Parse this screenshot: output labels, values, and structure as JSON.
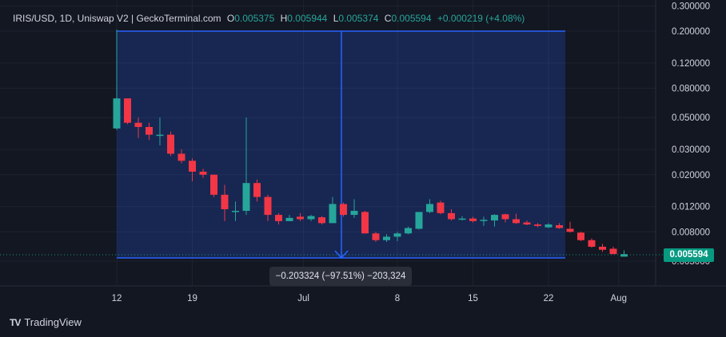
{
  "header": {
    "symbol": "IRIS/USD, 1D, Uniswap V2 | GeckoTerminal.com",
    "o_label": "O",
    "o_value": "0.005375",
    "h_label": "H",
    "h_value": "0.005944",
    "l_label": "L",
    "l_value": "0.005374",
    "c_label": "C",
    "c_value": "0.005594",
    "change": "+0.000219 (+4.08%)"
  },
  "measure": {
    "label": "−0.203324 (−97.51%) −203,324"
  },
  "last_price": "0.005594",
  "brand": {
    "logo": "TV",
    "name": "TradingView"
  },
  "colors": {
    "background": "#131722",
    "up": "#26a69a",
    "down": "#f23645",
    "measure": "#2962ff",
    "last": "#089981"
  },
  "chart_data": {
    "type": "candlestick",
    "scale": "log",
    "y_ticks": [
      "0.300000",
      "0.200000",
      "0.120000",
      "0.080000",
      "0.050000",
      "0.030000",
      "0.020000",
      "0.012000",
      "0.008000",
      "0.005000"
    ],
    "x_ticks": [
      "12",
      "19",
      "Jul",
      "8",
      "15",
      "22",
      "Aug"
    ],
    "candles": [
      {
        "d": "Jun 12",
        "o": 0.042,
        "h": 0.205,
        "l": 0.041,
        "c": 0.068
      },
      {
        "d": "Jun 13",
        "o": 0.068,
        "h": 0.068,
        "l": 0.045,
        "c": 0.046
      },
      {
        "d": "Jun 14",
        "o": 0.046,
        "h": 0.05,
        "l": 0.036,
        "c": 0.043
      },
      {
        "d": "Jun 15",
        "o": 0.043,
        "h": 0.046,
        "l": 0.035,
        "c": 0.038
      },
      {
        "d": "Jun 16",
        "o": 0.038,
        "h": 0.05,
        "l": 0.032,
        "c": 0.038
      },
      {
        "d": "Jun 17",
        "o": 0.038,
        "h": 0.04,
        "l": 0.027,
        "c": 0.028
      },
      {
        "d": "Jun 18",
        "o": 0.028,
        "h": 0.03,
        "l": 0.024,
        "c": 0.025
      },
      {
        "d": "Jun 19",
        "o": 0.025,
        "h": 0.026,
        "l": 0.018,
        "c": 0.021
      },
      {
        "d": "Jun 20",
        "o": 0.021,
        "h": 0.022,
        "l": 0.019,
        "c": 0.02
      },
      {
        "d": "Jun 21",
        "o": 0.02,
        "h": 0.02,
        "l": 0.014,
        "c": 0.0145
      },
      {
        "d": "Jun 22",
        "o": 0.0145,
        "h": 0.017,
        "l": 0.0095,
        "c": 0.0115
      },
      {
        "d": "Jun 23",
        "o": 0.011,
        "h": 0.013,
        "l": 0.0095,
        "c": 0.0112
      },
      {
        "d": "Jun 24",
        "o": 0.0112,
        "h": 0.05,
        "l": 0.0105,
        "c": 0.0175
      },
      {
        "d": "Jun 25",
        "o": 0.0175,
        "h": 0.0185,
        "l": 0.013,
        "c": 0.014
      },
      {
        "d": "Jun 26",
        "o": 0.014,
        "h": 0.0145,
        "l": 0.0095,
        "c": 0.0105
      },
      {
        "d": "Jun 27",
        "o": 0.0105,
        "h": 0.0108,
        "l": 0.009,
        "c": 0.0095
      },
      {
        "d": "Jun 28",
        "o": 0.0095,
        "h": 0.0105,
        "l": 0.0095,
        "c": 0.01
      },
      {
        "d": "Jun 29",
        "o": 0.0102,
        "h": 0.0108,
        "l": 0.0095,
        "c": 0.0098
      },
      {
        "d": "Jun 30",
        "o": 0.0098,
        "h": 0.0105,
        "l": 0.0095,
        "c": 0.0103
      },
      {
        "d": "Jul 1",
        "o": 0.0101,
        "h": 0.0103,
        "l": 0.009,
        "c": 0.0092
      },
      {
        "d": "Jul 2",
        "o": 0.0092,
        "h": 0.014,
        "l": 0.0092,
        "c": 0.0125
      },
      {
        "d": "Jul 3",
        "o": 0.0125,
        "h": 0.0128,
        "l": 0.0102,
        "c": 0.0105
      },
      {
        "d": "Jul 4",
        "o": 0.0105,
        "h": 0.0135,
        "l": 0.01,
        "c": 0.0112
      },
      {
        "d": "Jul 5",
        "o": 0.011,
        "h": 0.0112,
        "l": 0.0078,
        "c": 0.0078
      },
      {
        "d": "Jul 6",
        "o": 0.0078,
        "h": 0.008,
        "l": 0.0068,
        "c": 0.007
      },
      {
        "d": "Jul 7",
        "o": 0.007,
        "h": 0.0077,
        "l": 0.0068,
        "c": 0.0074
      },
      {
        "d": "Jul 8",
        "o": 0.0074,
        "h": 0.008,
        "l": 0.0069,
        "c": 0.0078
      },
      {
        "d": "Jul 9",
        "o": 0.0078,
        "h": 0.0087,
        "l": 0.0077,
        "c": 0.0085
      },
      {
        "d": "Jul 10",
        "o": 0.0084,
        "h": 0.011,
        "l": 0.0083,
        "c": 0.011
      },
      {
        "d": "Jul 11",
        "o": 0.011,
        "h": 0.0135,
        "l": 0.0108,
        "c": 0.0125
      },
      {
        "d": "Jul 12",
        "o": 0.0128,
        "h": 0.0132,
        "l": 0.0106,
        "c": 0.0108
      },
      {
        "d": "Jul 13",
        "o": 0.0108,
        "h": 0.0115,
        "l": 0.0096,
        "c": 0.0098
      },
      {
        "d": "Jul 14",
        "o": 0.0099,
        "h": 0.0103,
        "l": 0.0096,
        "c": 0.0099
      },
      {
        "d": "Jul 15",
        "o": 0.0099,
        "h": 0.0102,
        "l": 0.0093,
        "c": 0.0095
      },
      {
        "d": "Jul 16",
        "o": 0.0096,
        "h": 0.0102,
        "l": 0.0088,
        "c": 0.0097
      },
      {
        "d": "Jul 17",
        "o": 0.0096,
        "h": 0.0106,
        "l": 0.0087,
        "c": 0.0105
      },
      {
        "d": "Jul 18",
        "o": 0.0106,
        "h": 0.0107,
        "l": 0.0093,
        "c": 0.0098
      },
      {
        "d": "Jul 19",
        "o": 0.0098,
        "h": 0.0107,
        "l": 0.0091,
        "c": 0.0092
      },
      {
        "d": "Jul 20",
        "o": 0.0093,
        "h": 0.0096,
        "l": 0.0089,
        "c": 0.009
      },
      {
        "d": "Jul 21",
        "o": 0.009,
        "h": 0.0092,
        "l": 0.0086,
        "c": 0.0088
      },
      {
        "d": "Jul 22",
        "o": 0.0086,
        "h": 0.0092,
        "l": 0.0085,
        "c": 0.009
      },
      {
        "d": "Jul 23",
        "o": 0.0089,
        "h": 0.0092,
        "l": 0.0084,
        "c": 0.0085
      },
      {
        "d": "Jul 24",
        "o": 0.0084,
        "h": 0.0094,
        "l": 0.0079,
        "c": 0.008
      },
      {
        "d": "Jul 25",
        "o": 0.0079,
        "h": 0.008,
        "l": 0.0069,
        "c": 0.007
      },
      {
        "d": "Jul 26",
        "o": 0.007,
        "h": 0.0072,
        "l": 0.0062,
        "c": 0.0063
      },
      {
        "d": "Jul 27",
        "o": 0.0063,
        "h": 0.0066,
        "l": 0.0058,
        "c": 0.006
      },
      {
        "d": "Jul 28",
        "o": 0.0061,
        "h": 0.0063,
        "l": 0.0056,
        "c": 0.0056
      },
      {
        "d": "Jul 29",
        "o": 0.005375,
        "h": 0.005944,
        "l": 0.005374,
        "c": 0.005594
      }
    ]
  }
}
